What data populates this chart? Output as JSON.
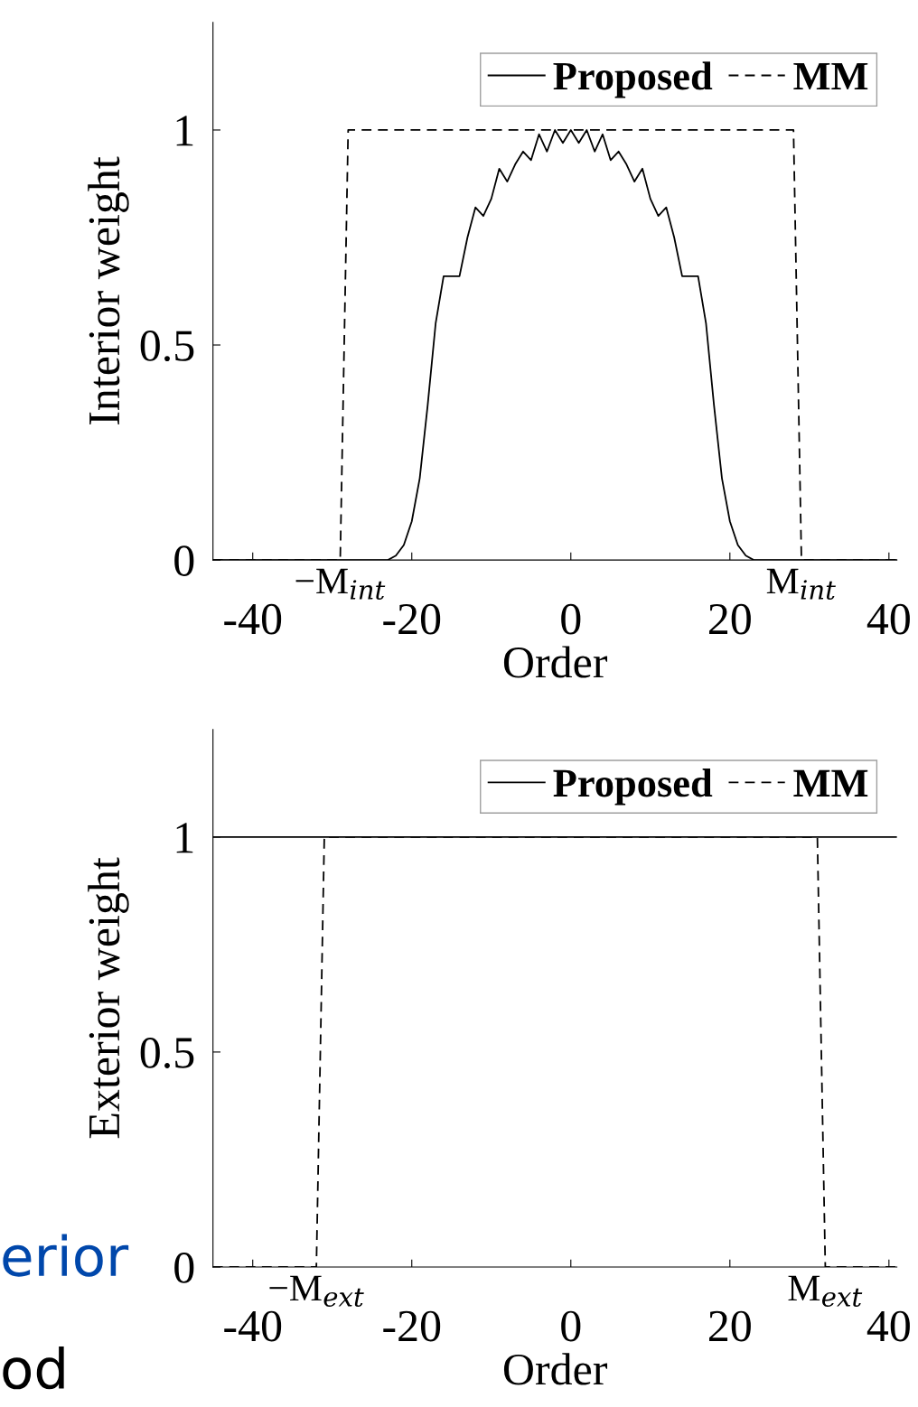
{
  "chart_data": [
    {
      "type": "line",
      "xlabel": "Order",
      "ylabel": "Interior weight",
      "xlim": [
        -45,
        41
      ],
      "xticks": [
        -40,
        -20,
        0,
        20,
        40
      ],
      "ylim": [
        0,
        1.25
      ],
      "yticks": [
        0,
        0.5,
        1
      ],
      "grid": false,
      "legend": "top right",
      "series": [
        {
          "name": "Proposed",
          "color": "#000000",
          "line_style": "solid",
          "x": [
            -45,
            -23,
            -22,
            -21,
            -20,
            -19,
            -18,
            -17,
            -16,
            -15,
            -14,
            -13,
            -12,
            -11,
            -10,
            -9,
            -8,
            -7,
            -6,
            -5,
            -4,
            -3,
            -2,
            -1,
            0,
            1,
            2,
            3,
            4,
            5,
            6,
            7,
            8,
            9,
            10,
            11,
            12,
            13,
            14,
            15,
            16,
            17,
            18,
            19,
            20,
            21,
            22,
            23,
            41
          ],
          "values": [
            0,
            0,
            0.01,
            0.035,
            0.09,
            0.19,
            0.36,
            0.55,
            0.66,
            0.66,
            0.66,
            0.75,
            0.82,
            0.8,
            0.84,
            0.91,
            0.88,
            0.92,
            0.95,
            0.93,
            0.99,
            0.95,
            1.0,
            0.97,
            1.0,
            0.97,
            1.0,
            0.95,
            0.99,
            0.93,
            0.95,
            0.92,
            0.88,
            0.91,
            0.84,
            0.8,
            0.82,
            0.75,
            0.66,
            0.66,
            0.66,
            0.55,
            0.36,
            0.19,
            0.09,
            0.035,
            0.01,
            0,
            0
          ]
        },
        {
          "name": "MM",
          "color": "#000000",
          "line_style": "dashed",
          "x": [
            -45,
            -29,
            -28,
            28,
            29,
            41
          ],
          "values": [
            0,
            0,
            1,
            1,
            0,
            0
          ]
        }
      ],
      "annotations": [
        {
          "text": "−M$_{int}$",
          "x": -29,
          "y": 0
        },
        {
          "text": "M$_{int}$",
          "x": 29,
          "y": 0
        }
      ]
    },
    {
      "type": "line",
      "xlabel": "Order",
      "ylabel": "Exterior weight",
      "xlim": [
        -45,
        41
      ],
      "xticks": [
        -40,
        -20,
        0,
        20,
        40
      ],
      "ylim": [
        0,
        1.25
      ],
      "yticks": [
        0,
        0.5,
        1
      ],
      "grid": false,
      "legend": "top right",
      "series": [
        {
          "name": "Proposed",
          "color": "#000000",
          "line_style": "solid",
          "x": [
            -45,
            41
          ],
          "values": [
            1,
            1
          ]
        },
        {
          "name": "MM",
          "color": "#000000",
          "line_style": "dashed",
          "x": [
            -45,
            -32,
            -31,
            31,
            32,
            41
          ],
          "values": [
            0,
            0,
            1,
            1,
            0,
            0
          ]
        }
      ],
      "annotations": [
        {
          "text": "−M$_{ext}$",
          "x": -32,
          "y": 0
        },
        {
          "text": "M$_{ext}$",
          "x": 32,
          "y": 0
        },
        "erior",
        "od"
      ]
    }
  ]
}
